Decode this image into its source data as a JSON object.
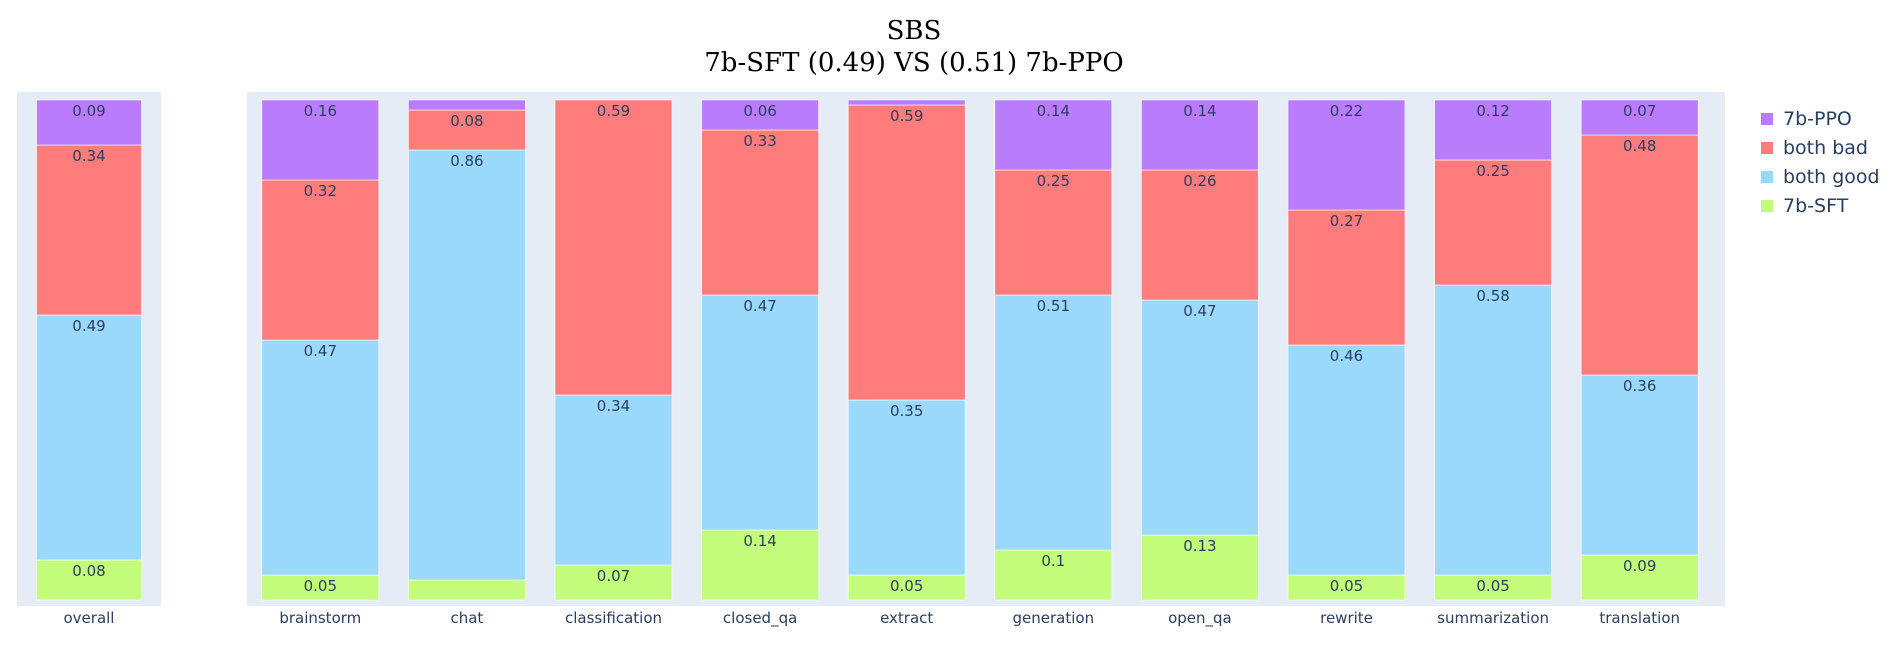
{
  "chart_data": {
    "type": "bar",
    "stacked": true,
    "title": [
      "SBS",
      "7b-SFT (0.49)  VS  (0.51) 7b-PPO"
    ],
    "legend": {
      "placement": "right",
      "order": [
        "7b-PPO",
        "both bad",
        "both good",
        "7b-SFT"
      ]
    },
    "colors": {
      "7b-PPO": "#b97cfc",
      "both bad": "#ff7c7c",
      "both good": "#9ad9fc",
      "7b-SFT": "#c3fc7a",
      "plot_bg": "#e5ecf6"
    },
    "panels": [
      {
        "categories": [
          "overall"
        ],
        "series": [
          {
            "name": "7b-SFT",
            "values": [
              0.08
            ],
            "labels": [
              "0.08"
            ]
          },
          {
            "name": "both good",
            "values": [
              0.49
            ],
            "labels": [
              "0.49"
            ]
          },
          {
            "name": "both bad",
            "values": [
              0.34
            ],
            "labels": [
              "0.34"
            ]
          },
          {
            "name": "7b-PPO",
            "values": [
              0.09
            ],
            "labels": [
              "0.09"
            ]
          }
        ]
      },
      {
        "categories": [
          "brainstorm",
          "chat",
          "classification",
          "closed_qa",
          "extract",
          "generation",
          "open_qa",
          "rewrite",
          "summarization",
          "translation"
        ],
        "series": [
          {
            "name": "7b-SFT",
            "values": [
              0.05,
              0.04,
              0.07,
              0.14,
              0.05,
              0.1,
              0.13,
              0.05,
              0.05,
              0.09
            ],
            "labels": [
              "0.05",
              "",
              "0.07",
              "0.14",
              "0.05",
              "0.1",
              "0.13",
              "0.05",
              "0.05",
              "0.09"
            ]
          },
          {
            "name": "both good",
            "values": [
              0.47,
              0.86,
              0.34,
              0.47,
              0.35,
              0.51,
              0.47,
              0.46,
              0.58,
              0.36
            ],
            "labels": [
              "0.47",
              "0.86",
              "0.34",
              "0.47",
              "0.35",
              "0.51",
              "0.47",
              "0.46",
              "0.58",
              "0.36"
            ]
          },
          {
            "name": "both bad",
            "values": [
              0.32,
              0.08,
              0.59,
              0.33,
              0.59,
              0.25,
              0.26,
              0.27,
              0.25,
              0.48
            ],
            "labels": [
              "0.32",
              "0.08",
              "0.59",
              "0.33",
              "0.59",
              "0.25",
              "0.26",
              "0.27",
              "0.25",
              "0.48"
            ]
          },
          {
            "name": "7b-PPO",
            "values": [
              0.16,
              0.02,
              0.0,
              0.06,
              0.01,
              0.14,
              0.14,
              0.22,
              0.12,
              0.07
            ],
            "labels": [
              "0.16",
              "",
              "",
              "0.06",
              "",
              "0.14",
              "0.14",
              "0.22",
              "0.12",
              "0.07"
            ]
          }
        ]
      }
    ],
    "ylim": [
      0,
      1
    ],
    "xlabel": "",
    "ylabel": "",
    "grid": false
  }
}
